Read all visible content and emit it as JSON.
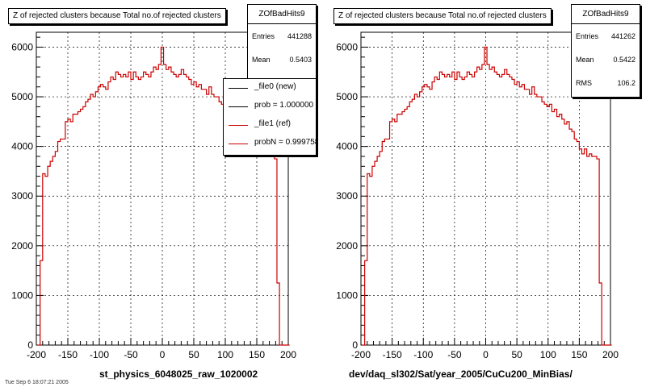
{
  "footer": "Tue Sep 6 18:07:21 2005",
  "panels": [
    {
      "title": "Z of rejected clusters  because Total no.of rejected clusters",
      "stats": {
        "name": "ZOfBadHits9",
        "rows": [
          {
            "label": "Entries",
            "value": "441288"
          },
          {
            "label": "Mean",
            "value": "0.5403"
          }
        ]
      },
      "legend": [
        {
          "label": "_file0 (new)",
          "color": "#000000"
        },
        {
          "label": "prob = 1.000000",
          "color": "#000000"
        },
        {
          "label": "_file1 (ref)",
          "color": "#cc0000"
        },
        {
          "label": "probN = 0.999758",
          "color": "#cc0000"
        }
      ],
      "xtitle": "st_physics_6048025_raw_1020002"
    },
    {
      "title": "Z of rejected clusters  because Total no.of rejected clusters",
      "stats": {
        "name": "ZOfBadHits9",
        "rows": [
          {
            "label": "Entries",
            "value": "441262"
          },
          {
            "label": "Mean",
            "value": "0.5422"
          },
          {
            "label": "RMS",
            "value": "106.2"
          }
        ]
      },
      "legend": [],
      "xtitle": "dev/daq_sl302/Sat/year_2005/CuCu200_MinBias/"
    }
  ],
  "chart_data": [
    {
      "type": "line",
      "title": "Z of rejected clusters  because Total no.of rejected clusters",
      "xlabel": "st_physics_6048025_raw_1020002",
      "ylabel": "",
      "xlim": [
        -200,
        200
      ],
      "ylim": [
        0,
        6300
      ],
      "xticks": [
        -200,
        -150,
        -100,
        -50,
        0,
        50,
        100,
        150,
        200
      ],
      "yticks": [
        0,
        1000,
        2000,
        3000,
        4000,
        5000,
        6000
      ],
      "grid": true,
      "bin_width": 4,
      "x": [
        -196,
        -192,
        -188,
        -184,
        -180,
        -176,
        -172,
        -168,
        -164,
        -160,
        -156,
        -152,
        -148,
        -144,
        -140,
        -136,
        -132,
        -128,
        -124,
        -120,
        -116,
        -112,
        -108,
        -104,
        -100,
        -96,
        -92,
        -88,
        -84,
        -80,
        -76,
        -72,
        -68,
        -64,
        -60,
        -56,
        -52,
        -48,
        -44,
        -40,
        -36,
        -32,
        -28,
        -24,
        -20,
        -16,
        -12,
        -8,
        -4,
        0,
        4,
        8,
        12,
        16,
        20,
        24,
        28,
        32,
        36,
        40,
        44,
        48,
        52,
        56,
        60,
        64,
        68,
        72,
        76,
        80,
        84,
        88,
        92,
        96,
        100,
        104,
        108,
        112,
        116,
        120,
        124,
        128,
        132,
        136,
        140,
        144,
        148,
        152,
        156,
        160,
        164,
        168,
        172,
        176,
        180,
        184,
        188,
        192,
        196,
        200
      ],
      "series": [
        {
          "name": "_file1 (ref)",
          "color": "#cc0000",
          "values": [
            0,
            1700,
            3450,
            3400,
            3600,
            3700,
            3800,
            3900,
            4100,
            4150,
            4150,
            4500,
            4550,
            4500,
            4650,
            4650,
            4700,
            4750,
            4800,
            4900,
            4950,
            5050,
            5000,
            5100,
            5200,
            5250,
            5200,
            5150,
            5300,
            5400,
            5350,
            5500,
            5450,
            5400,
            5450,
            5400,
            5500,
            5350,
            5500,
            5400,
            5350,
            5400,
            5500,
            5450,
            5400,
            5500,
            5600,
            5550,
            5650,
            6000,
            5650,
            5550,
            5600,
            5500,
            5450,
            5400,
            5450,
            5550,
            5450,
            5400,
            5350,
            5250,
            5300,
            5200,
            5250,
            5150,
            5150,
            5050,
            5200,
            5050,
            5000,
            5000,
            4900,
            4850,
            4800,
            4850,
            4700,
            4750,
            4600,
            4650,
            4550,
            4450,
            4500,
            4350,
            4300,
            4150,
            4100,
            3950,
            3850,
            3950,
            3800,
            3850,
            3800,
            3800,
            3750,
            1250,
            0,
            0,
            0,
            0
          ]
        }
      ]
    },
    {
      "type": "line",
      "title": "Z of rejected clusters  because Total no.of rejected clusters",
      "xlabel": "dev/daq_sl302/Sat/year_2005/CuCu200_MinBias/",
      "ylabel": "",
      "xlim": [
        -200,
        200
      ],
      "ylim": [
        0,
        6300
      ],
      "xticks": [
        -200,
        -150,
        -100,
        -50,
        0,
        50,
        100,
        150,
        200
      ],
      "yticks": [
        0,
        1000,
        2000,
        3000,
        4000,
        5000,
        6000
      ],
      "grid": true,
      "bin_width": 4,
      "x": [
        -196,
        -192,
        -188,
        -184,
        -180,
        -176,
        -172,
        -168,
        -164,
        -160,
        -156,
        -152,
        -148,
        -144,
        -140,
        -136,
        -132,
        -128,
        -124,
        -120,
        -116,
        -112,
        -108,
        -104,
        -100,
        -96,
        -92,
        -88,
        -84,
        -80,
        -76,
        -72,
        -68,
        -64,
        -60,
        -56,
        -52,
        -48,
        -44,
        -40,
        -36,
        -32,
        -28,
        -24,
        -20,
        -16,
        -12,
        -8,
        -4,
        0,
        4,
        8,
        12,
        16,
        20,
        24,
        28,
        32,
        36,
        40,
        44,
        48,
        52,
        56,
        60,
        64,
        68,
        72,
        76,
        80,
        84,
        88,
        92,
        96,
        100,
        104,
        108,
        112,
        116,
        120,
        124,
        128,
        132,
        136,
        140,
        144,
        148,
        152,
        156,
        160,
        164,
        168,
        172,
        176,
        180,
        184,
        188,
        192,
        196,
        200
      ],
      "series": [
        {
          "name": "",
          "color": "#cc0000",
          "values": [
            0,
            1700,
            3450,
            3400,
            3600,
            3700,
            3800,
            3900,
            4100,
            4150,
            4150,
            4500,
            4550,
            4500,
            4650,
            4650,
            4700,
            4750,
            4800,
            4900,
            4950,
            5050,
            5000,
            5100,
            5200,
            5250,
            5200,
            5150,
            5300,
            5400,
            5350,
            5500,
            5450,
            5400,
            5450,
            5400,
            5500,
            5350,
            5500,
            5400,
            5350,
            5400,
            5500,
            5450,
            5400,
            5500,
            5600,
            5550,
            5650,
            6000,
            5650,
            5550,
            5600,
            5500,
            5450,
            5400,
            5450,
            5550,
            5450,
            5400,
            5350,
            5250,
            5300,
            5200,
            5250,
            5150,
            5150,
            5050,
            5200,
            5050,
            5000,
            5000,
            4900,
            4850,
            4800,
            4850,
            4700,
            4750,
            4600,
            4650,
            4550,
            4450,
            4500,
            4350,
            4300,
            4150,
            4100,
            3950,
            3850,
            3950,
            3800,
            3850,
            3800,
            3800,
            3750,
            1250,
            0,
            0,
            0,
            0
          ]
        }
      ]
    }
  ]
}
